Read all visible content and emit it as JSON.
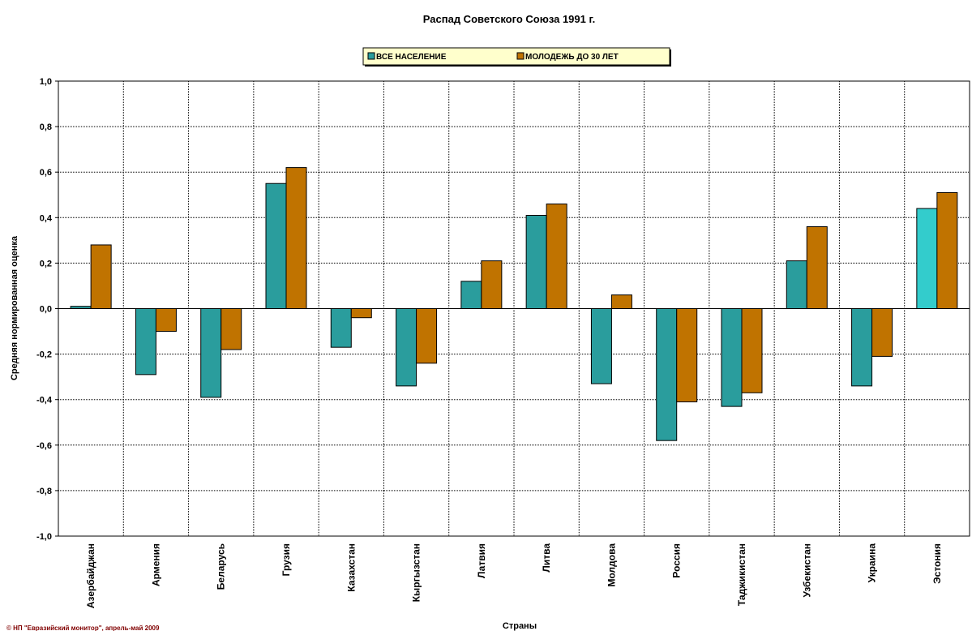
{
  "chart_data": {
    "type": "bar",
    "title": "Распад Советского Союза 1991 г.",
    "xlabel": "Страны",
    "ylabel": "Средняя нормированная оценка",
    "ylim": [
      -1.0,
      1.0
    ],
    "ytick_step": 0.2,
    "ytick_labels": [
      "1,0",
      "0,8",
      "0,6",
      "0,4",
      "0,2",
      "0,0",
      "-0,2",
      "-0,4",
      "-0,6",
      "-0,8",
      "-1,0"
    ],
    "categories": [
      "Азербайджан",
      "Армения",
      "Беларусь",
      "Грузия",
      "Казахстан",
      "Кыргызстан",
      "Латвия",
      "Литва",
      "Молдова",
      "Россия",
      "Таджикистан",
      "Узбекистан",
      "Украина",
      "Эстония"
    ],
    "series": [
      {
        "name": "ВСЕ НАСЕЛЕНИЕ",
        "color": "#2A9D9D",
        "values": [
          0.01,
          -0.29,
          -0.39,
          0.55,
          -0.17,
          -0.34,
          0.12,
          0.41,
          -0.33,
          -0.58,
          -0.43,
          0.21,
          -0.34,
          0.44
        ]
      },
      {
        "name": "МОЛОДЕЖЬ ДО 30 ЛЕТ",
        "color": "#C07300",
        "values": [
          0.28,
          -0.1,
          -0.18,
          0.62,
          -0.04,
          -0.24,
          0.21,
          0.46,
          0.06,
          -0.41,
          -0.37,
          0.36,
          -0.21,
          0.51
        ]
      }
    ],
    "highlight_color": "#33CCCC",
    "grid": true,
    "legend_position": "top-center",
    "legend_bg": "#FFFFCC"
  },
  "footnote": "© НП \"Евразийский монитор\", апрель-май 2009"
}
